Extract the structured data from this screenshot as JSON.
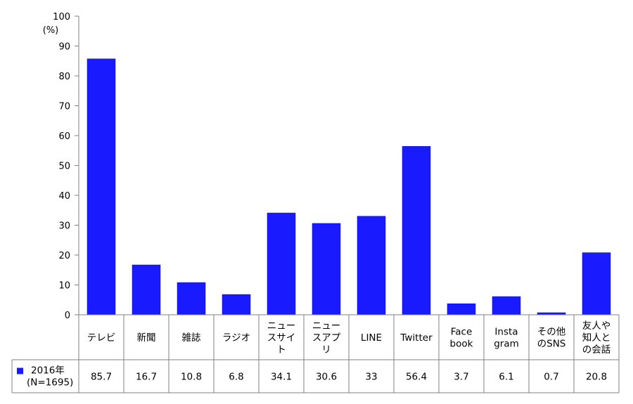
{
  "chart_data": {
    "type": "bar",
    "y_unit_label": "(%)",
    "ylim": [
      0,
      100
    ],
    "yticks": [
      0,
      10,
      20,
      30,
      40,
      50,
      60,
      70,
      80,
      90,
      100
    ],
    "grid": false,
    "categories": [
      [
        "テレビ"
      ],
      [
        "新聞"
      ],
      [
        "雑誌"
      ],
      [
        "ラジオ"
      ],
      [
        "ニュー",
        "スサイ",
        "ト"
      ],
      [
        "ニュー",
        "スアプ",
        "リ"
      ],
      [
        "LINE"
      ],
      [
        "Twitter"
      ],
      [
        "Face",
        "book"
      ],
      [
        "Insta",
        "gram"
      ],
      [
        "その他",
        "のSNS"
      ],
      [
        "友人や",
        "知人と",
        "の会話"
      ]
    ],
    "series": [
      {
        "name": [
          "2016年",
          "(N=1695)"
        ],
        "color": "#1a1aff",
        "values": [
          85.7,
          16.7,
          10.8,
          6.8,
          34.1,
          30.6,
          33,
          56.4,
          3.7,
          6.1,
          0.7,
          20.8
        ]
      }
    ]
  }
}
